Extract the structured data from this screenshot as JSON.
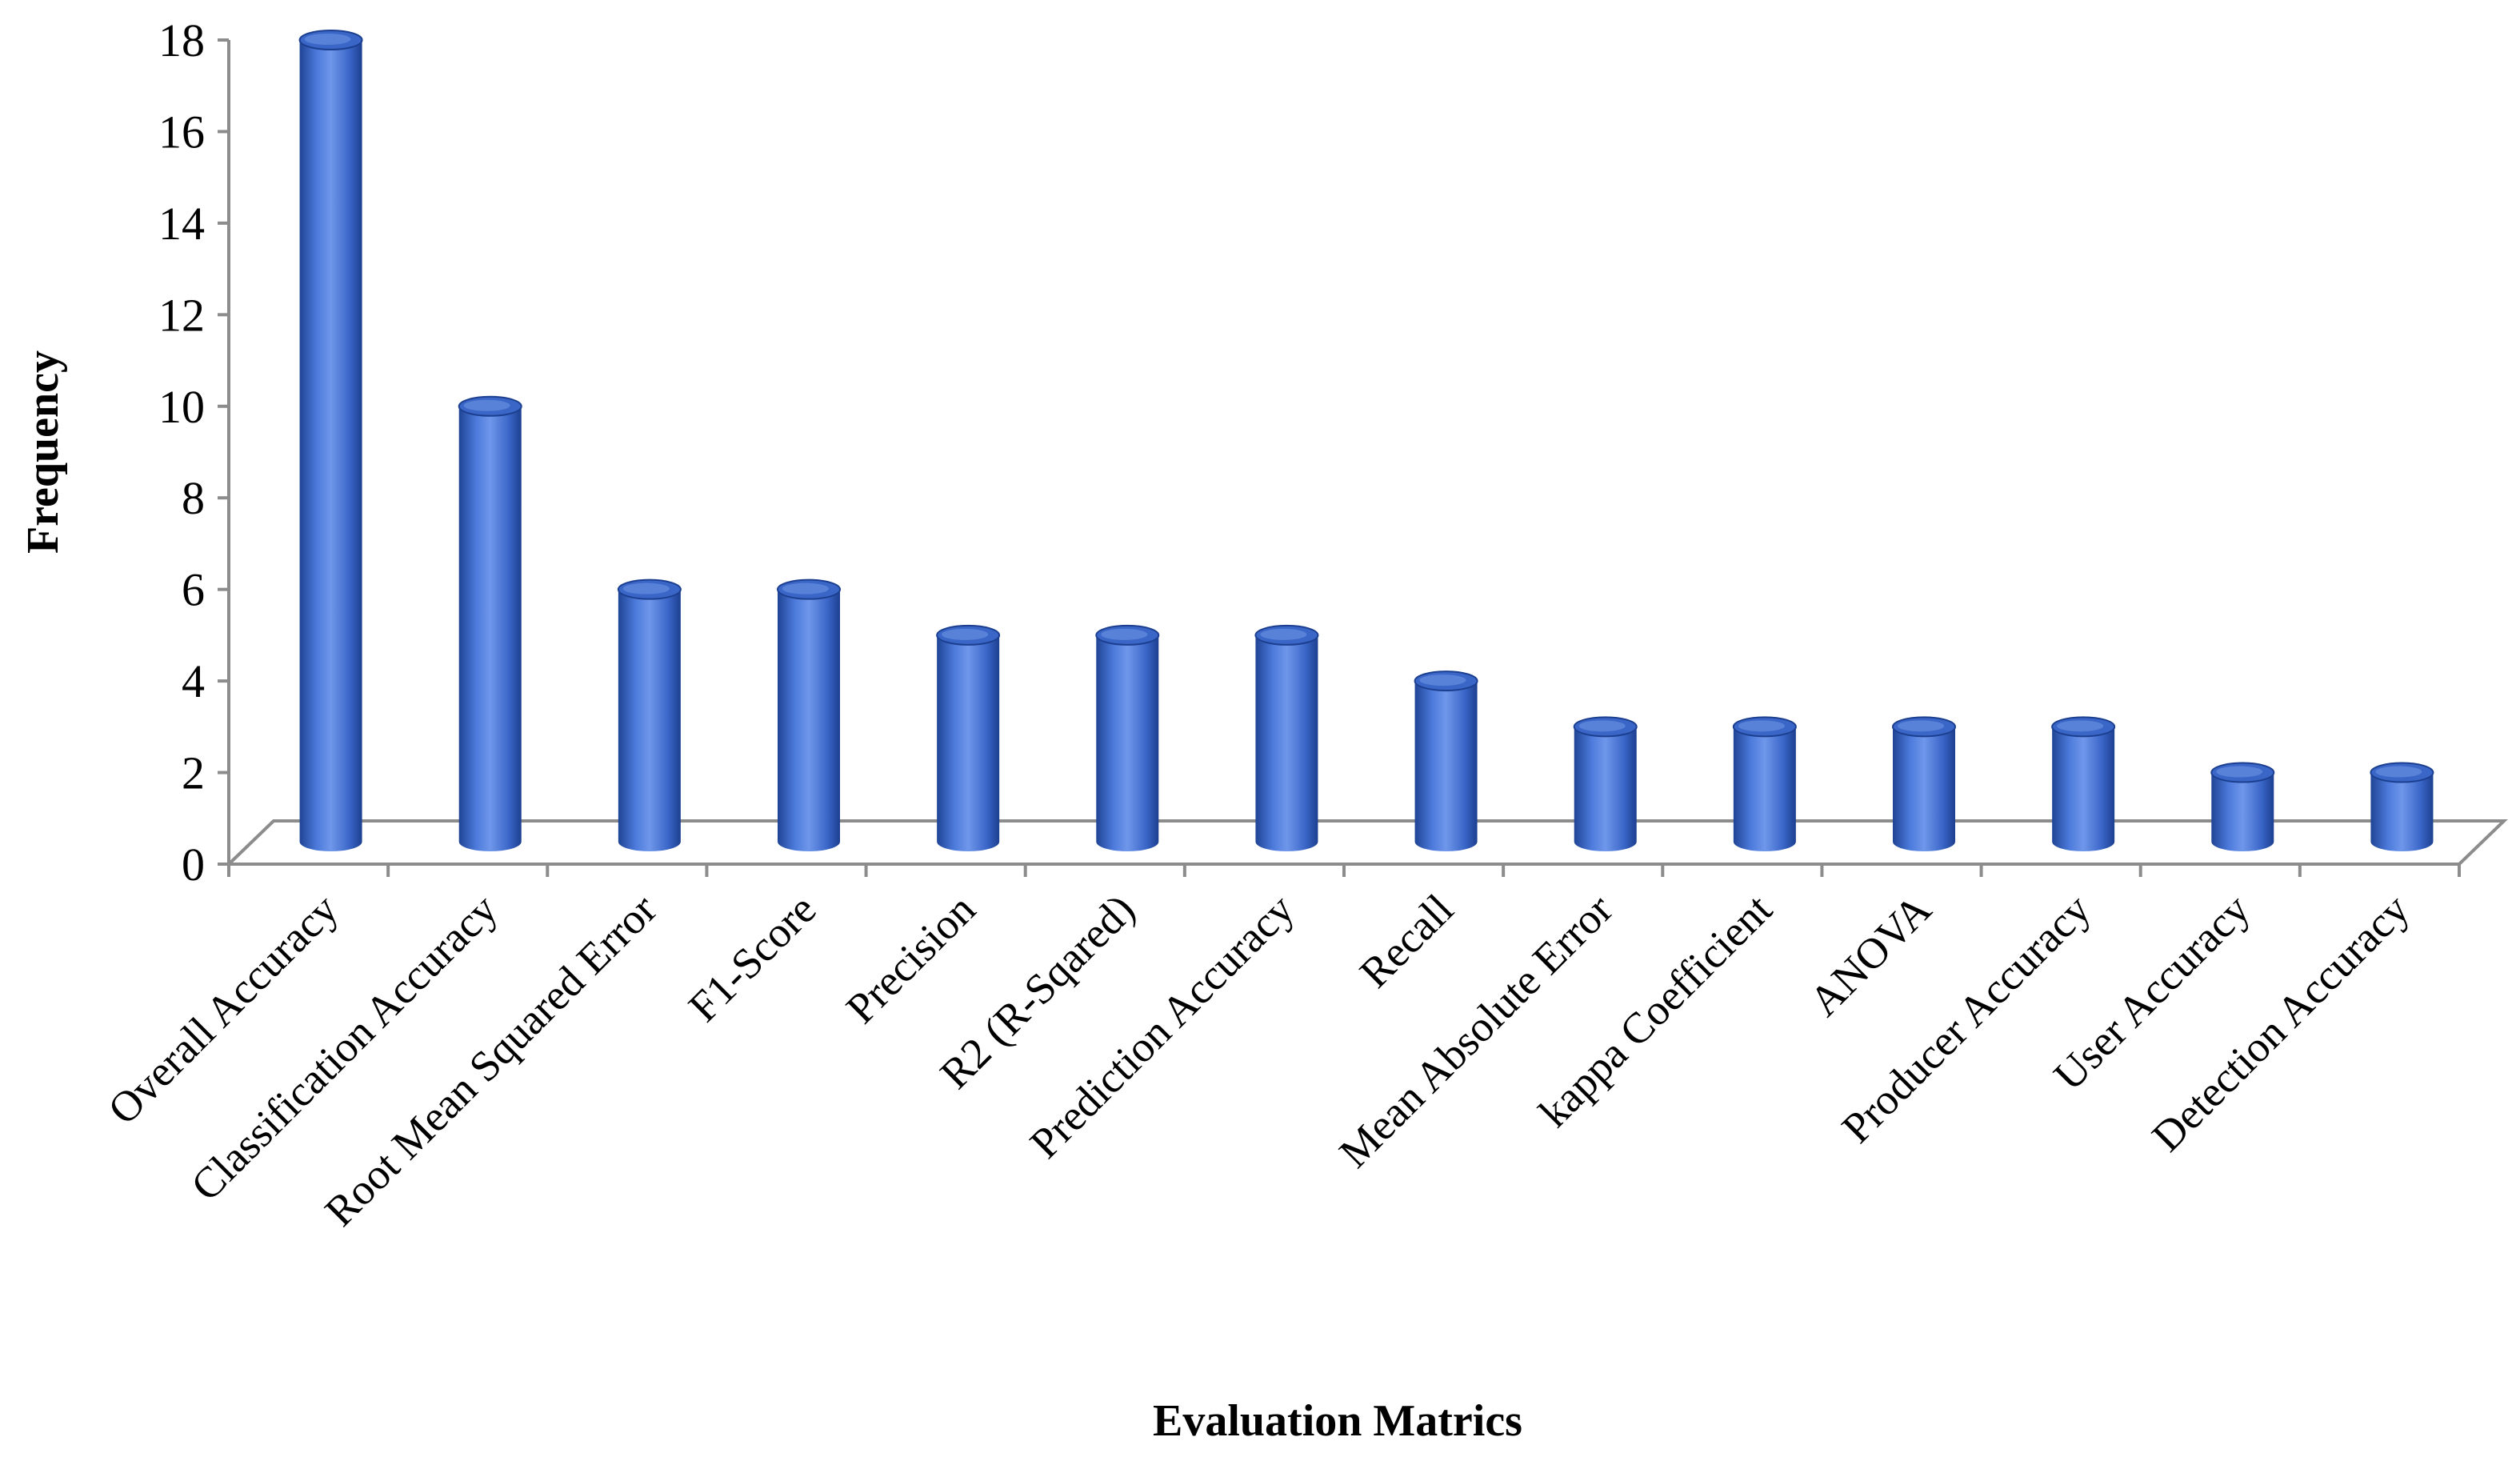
{
  "chart_data": {
    "type": "bar",
    "style": "3d-cylinder",
    "categories": [
      "Overall Accuracy",
      "Classification Accuracy",
      "Root Mean Squared Error",
      "F1-Score",
      "Precision",
      "R2 (R-Sqared)",
      "Prediction Accuracy",
      "Recall",
      "Mean Absolute Error",
      "kappa Coefficient",
      "ANOVA",
      "Producer Accuracy",
      "User Accuracy",
      "Detection Accuracy"
    ],
    "values": [
      18,
      10,
      6,
      6,
      5,
      5,
      5,
      4,
      3,
      3,
      3,
      3,
      2,
      2
    ],
    "title": "",
    "xlabel": "Evaluation Matrics",
    "ylabel": "Frequency",
    "ylim": [
      0,
      18
    ],
    "yticks": [
      "0",
      "2",
      "4",
      "6",
      "8",
      "10",
      "12",
      "14",
      "16",
      "18"
    ],
    "grid": false,
    "legend": "none",
    "bar_color": "#3a66c8",
    "bar_dark": "#1c3f8f",
    "bar_light": "#7ea2ea"
  }
}
